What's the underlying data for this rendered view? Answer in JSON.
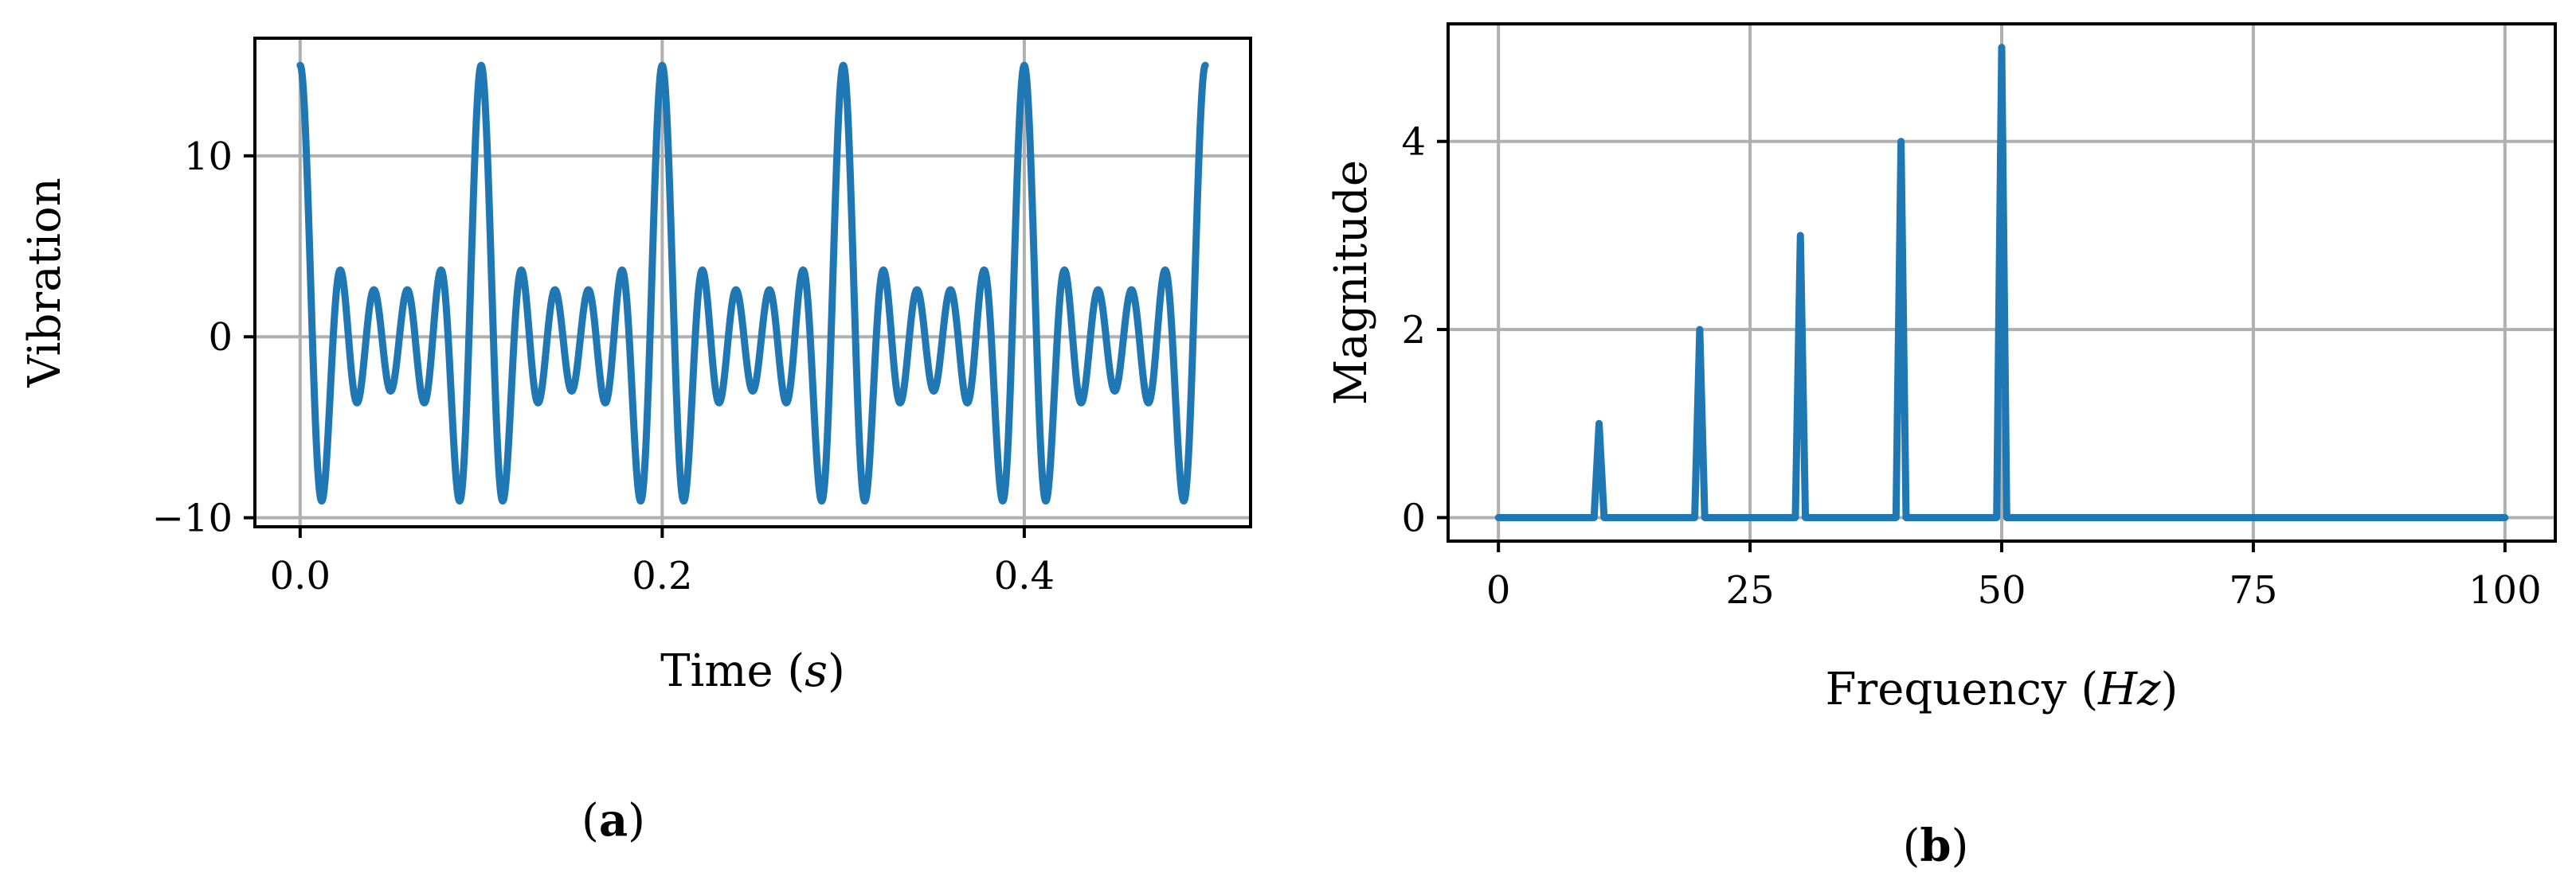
{
  "chart_data": [
    {
      "id": "a",
      "panel_label": "(a)",
      "type": "line",
      "xlabel": "Time (s)",
      "ylabel": "Vibration",
      "xlim": [
        -0.025,
        0.525
      ],
      "ylim": [
        -10.5,
        16.5
      ],
      "xticks": [
        0.0,
        0.2,
        0.4
      ],
      "xtick_labels": [
        "0.0",
        "0.2",
        "0.4"
      ],
      "yticks": [
        -10,
        0,
        10
      ],
      "ytick_labels": [
        "−10",
        "0",
        "10"
      ],
      "grid": true,
      "series": [
        {
          "signal": "y(t) = Σ k·cos(2π·10k·t), k = 1..5",
          "components_hz": [
            10,
            20,
            30,
            40,
            50
          ],
          "amplitudes": [
            1,
            2,
            3,
            4,
            5
          ],
          "x_range": [
            0.0,
            0.5
          ],
          "peak": 15.0,
          "min": -9.0,
          "color": "#1f77b4"
        }
      ]
    },
    {
      "id": "b",
      "panel_label": "(b)",
      "type": "line",
      "xlabel": "Frequency (Hz)",
      "ylabel": "Magnitude",
      "xlim": [
        -5,
        105
      ],
      "ylim": [
        -0.25,
        5.25
      ],
      "xticks": [
        0,
        25,
        50,
        75,
        100
      ],
      "xtick_labels": [
        "0",
        "25",
        "50",
        "75",
        "100"
      ],
      "yticks": [
        0,
        2,
        4
      ],
      "ytick_labels": [
        "0",
        "2",
        "4"
      ],
      "grid": true,
      "series": [
        {
          "x": [
            0,
            9.5,
            10,
            10.5,
            19.5,
            20,
            20.5,
            29.5,
            30,
            30.5,
            39.5,
            40,
            40.5,
            49.5,
            50,
            50.5,
            100
          ],
          "y": [
            0,
            0,
            1,
            0,
            0,
            2,
            0,
            0,
            3,
            0,
            0,
            4,
            0,
            0,
            5,
            0,
            0
          ],
          "color": "#1f77b4"
        }
      ]
    }
  ]
}
